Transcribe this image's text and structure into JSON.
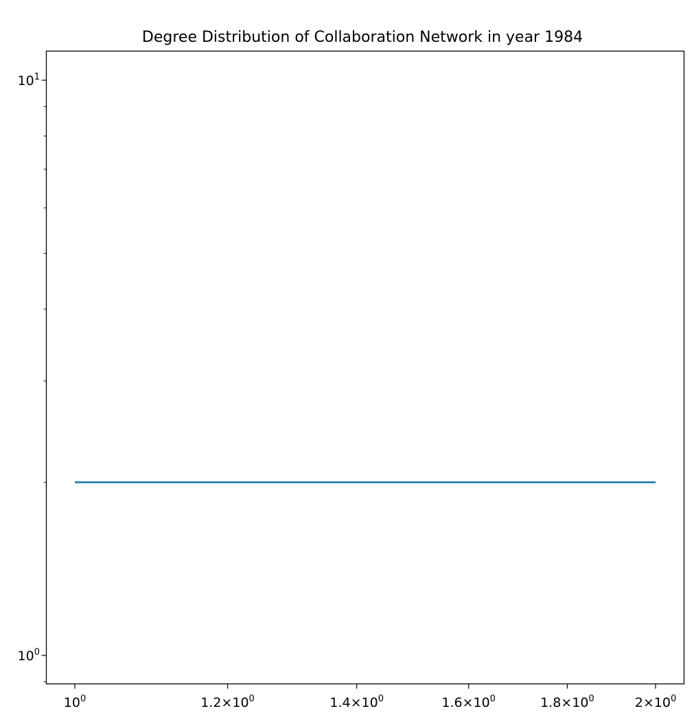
{
  "chart_data": {
    "type": "line",
    "title": "Degree Distribution of Collaboration Network in year 1984",
    "xlabel": "",
    "ylabel": "",
    "xscale": "log",
    "yscale": "log",
    "xlim": [
      0.96,
      2.05
    ],
    "ylim": [
      0.9,
      11.5
    ],
    "grid": false,
    "x_ticks": [
      {
        "value": 1.0,
        "mant": "",
        "exp": "0"
      },
      {
        "value": 1.2,
        "mant": "1.2",
        "exp": "0"
      },
      {
        "value": 1.4,
        "mant": "1.4",
        "exp": "0"
      },
      {
        "value": 1.6,
        "mant": "1.6",
        "exp": "0"
      },
      {
        "value": 1.8,
        "mant": "1.8",
        "exp": "0"
      },
      {
        "value": 2.0,
        "mant": "2",
        "exp": "0"
      }
    ],
    "y_ticks": [
      {
        "value": 1,
        "exp": "0"
      },
      {
        "value": 10,
        "exp": "1"
      }
    ],
    "y_minor_ticks": [
      0.9,
      2,
      3,
      4,
      5,
      6,
      7,
      8,
      9
    ],
    "series": [
      {
        "name": "",
        "color": "#1f77b4",
        "x": [
          1,
          2
        ],
        "y": [
          2,
          2
        ]
      }
    ]
  }
}
